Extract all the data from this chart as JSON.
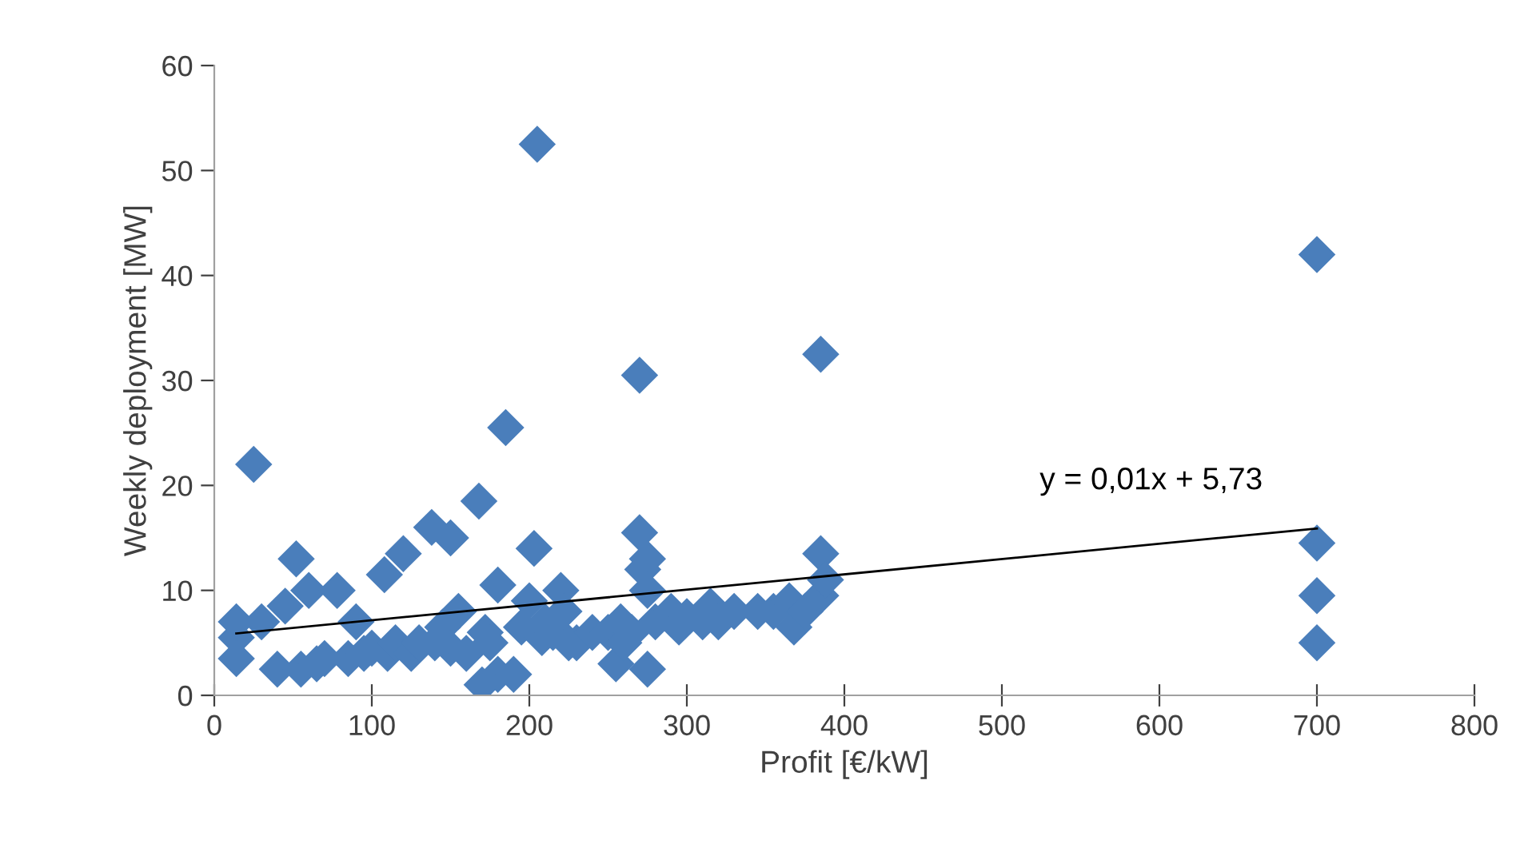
{
  "chart_data": {
    "type": "scatter",
    "xlabel": "Profit [€/kW]",
    "ylabel": "Weekly deployment [MW]",
    "xlim": [
      0,
      800
    ],
    "xticks": [
      0,
      100,
      200,
      300,
      400,
      500,
      600,
      700,
      800
    ],
    "ylim": [
      0,
      60
    ],
    "yticks": [
      0,
      10,
      20,
      30,
      40,
      50,
      60
    ],
    "grid": false,
    "legend": false,
    "annotations": [
      "y = 0,01x + 5,73"
    ],
    "series": [
      {
        "marker": "diamond",
        "color": "#4a7ebb",
        "x": [
          14,
          14,
          14,
          25,
          30,
          40,
          45,
          52,
          55,
          60,
          65,
          70,
          78,
          85,
          90,
          95,
          100,
          108,
          110,
          115,
          120,
          125,
          130,
          138,
          140,
          145,
          150,
          150,
          155,
          160,
          168,
          170,
          172,
          175,
          180,
          180,
          185,
          190,
          195,
          200,
          203,
          205,
          208,
          210,
          215,
          220,
          222,
          225,
          230,
          240,
          250,
          255,
          258,
          260,
          265,
          270,
          270,
          272,
          275,
          275,
          275,
          280,
          290,
          295,
          300,
          310,
          315,
          320,
          330,
          345,
          355,
          365,
          368,
          375,
          385,
          385,
          385,
          388,
          700,
          700,
          700,
          700
        ],
        "values": [
          7,
          5.5,
          3.5,
          22,
          7,
          2.5,
          8.5,
          13,
          2.5,
          10,
          3,
          3.5,
          10,
          3.5,
          7,
          4,
          4.5,
          11.5,
          4,
          5,
          13.5,
          4,
          5,
          16,
          5,
          6.5,
          15,
          4.5,
          8,
          4,
          18.5,
          1,
          6,
          5,
          10.5,
          2,
          25.5,
          2,
          6.5,
          9,
          14,
          52.5,
          5.5,
          7,
          6,
          10,
          8,
          5,
          5,
          6,
          6,
          3,
          7,
          5,
          6,
          15.5,
          30.5,
          12,
          13,
          10,
          2.5,
          7,
          8,
          6.5,
          7.5,
          7,
          8.5,
          7,
          8,
          8,
          8,
          9,
          6.5,
          8,
          32.5,
          13.5,
          9.5,
          11,
          42,
          14.5,
          9.5,
          5
        ]
      },
      {
        "type": "line",
        "color": "#000000",
        "x": [
          14,
          700
        ],
        "values": [
          5.9,
          15.9
        ]
      }
    ]
  }
}
